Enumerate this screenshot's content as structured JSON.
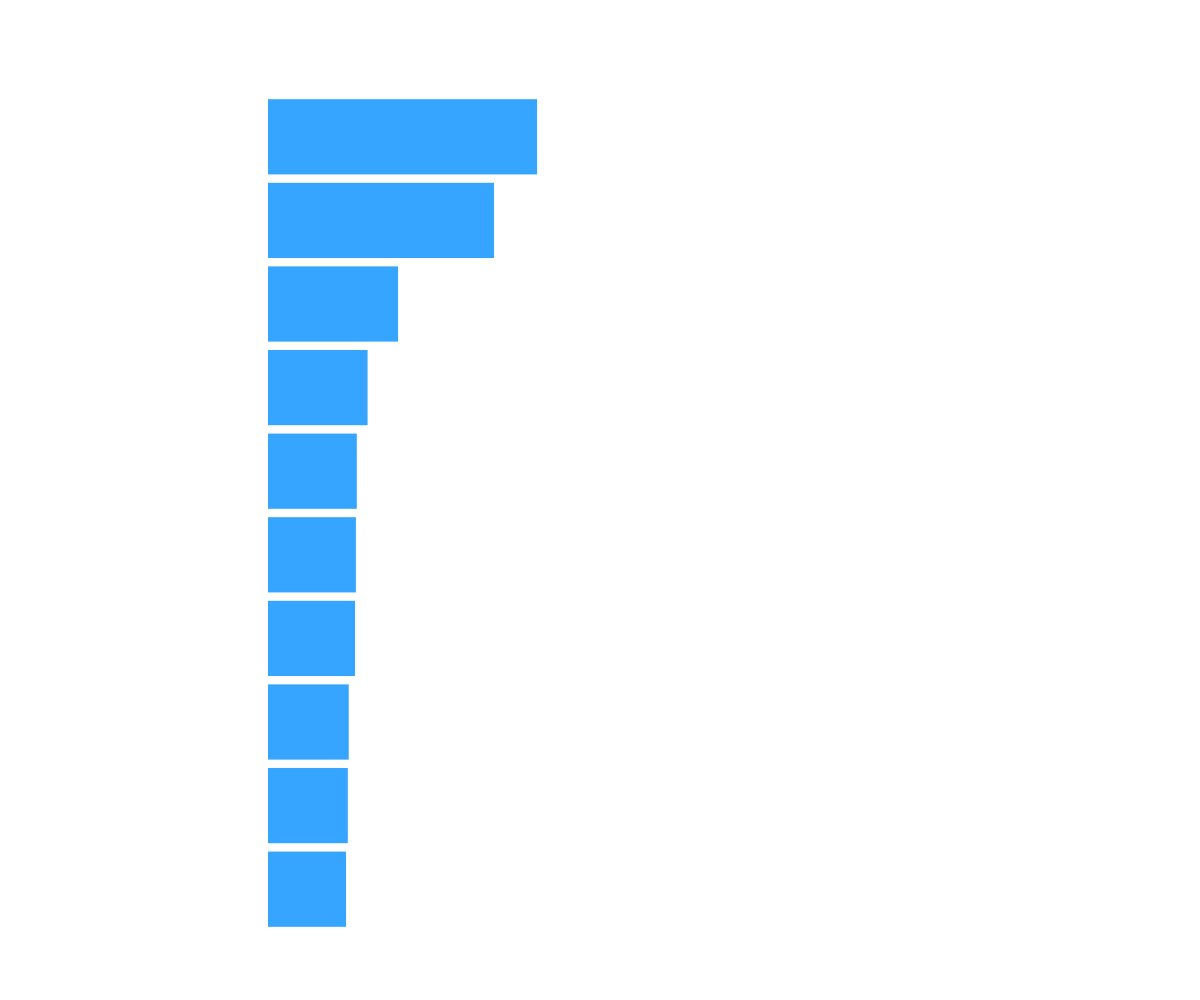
{
  "chart_data": {
    "type": "bar",
    "orientation": "horizontal",
    "title": "",
    "xlabel": "",
    "ylabel": "",
    "grid": false,
    "legend": "none",
    "axes_visible": false,
    "bar_color": "#36a5ff",
    "background_color": "#ffffff",
    "xlim": [
      0,
      100
    ],
    "values": [
      30.0,
      25.2,
      14.5,
      11.1,
      9.9,
      9.8,
      9.7,
      9.0,
      8.9,
      8.7
    ]
  }
}
